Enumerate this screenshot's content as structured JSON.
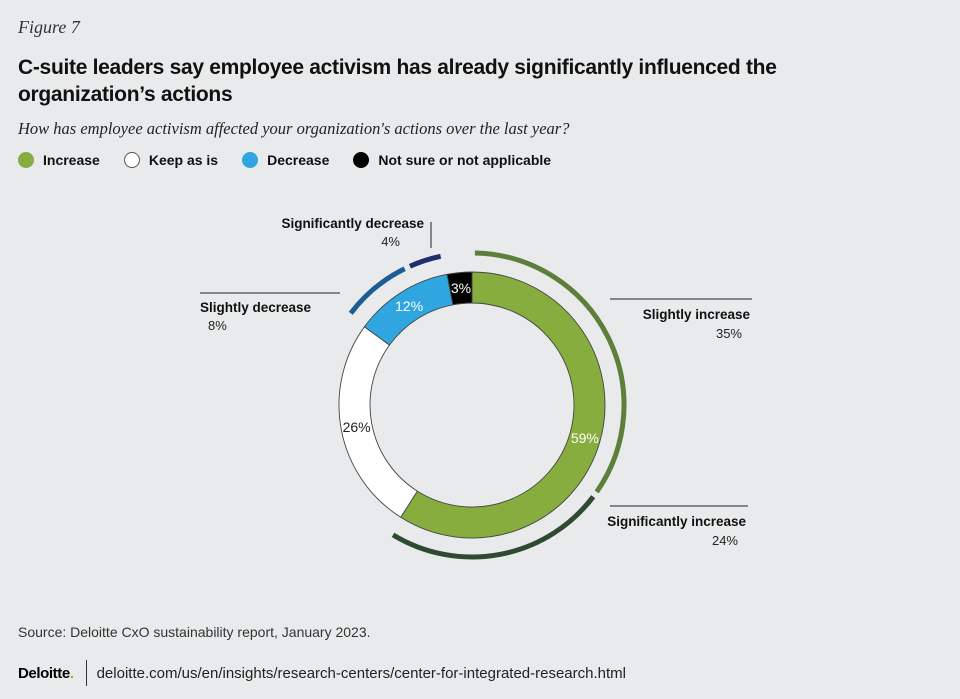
{
  "figure_label": "Figure 7",
  "title": "C-suite leaders say employee activism has already significantly influenced the organization’s actions",
  "subtitle": "How has employee activism affected your organization's actions over the last year?",
  "legend": [
    {
      "label": "Increase",
      "color": "#86ad3d"
    },
    {
      "label": "Keep as is",
      "color": "#ffffff"
    },
    {
      "label": "Decrease",
      "color": "#2fa6e0"
    },
    {
      "label": "Not sure or not applicable",
      "color": "#000000"
    }
  ],
  "chart_data": {
    "type": "pie",
    "variant": "donut",
    "slices": [
      {
        "label": "Increase",
        "value": 59,
        "display": "59%",
        "color": "#86ad3d"
      },
      {
        "label": "Keep as is",
        "value": 26,
        "display": "26%",
        "color": "#ffffff"
      },
      {
        "label": "Decrease",
        "value": 12,
        "display": "12%",
        "color": "#2fa6e0"
      },
      {
        "label": "Not sure or not applicable",
        "value": 3,
        "display": "3%",
        "color": "#000000"
      }
    ],
    "breakdown": [
      {
        "label": "Slightly increase",
        "value": 35,
        "display": "35%",
        "parent": "Increase",
        "color": "#5c7f3b"
      },
      {
        "label": "Significantly increase",
        "value": 24,
        "display": "24%",
        "parent": "Increase",
        "color": "#2e4a31"
      },
      {
        "label": "Slightly decrease",
        "value": 8,
        "display": "8%",
        "parent": "Decrease",
        "color": "#1e5d93"
      },
      {
        "label": "Significantly decrease",
        "value": 4,
        "display": "4%",
        "parent": "Decrease",
        "color": "#1f2f6b"
      }
    ]
  },
  "source": "Source: Deloitte CxO sustainability report, January 2023.",
  "footer": {
    "logo": "Deloitte",
    "logo_dot": ".",
    "url": "deloitte.com/us/en/insights/research-centers/center-for-integrated-research.html"
  }
}
